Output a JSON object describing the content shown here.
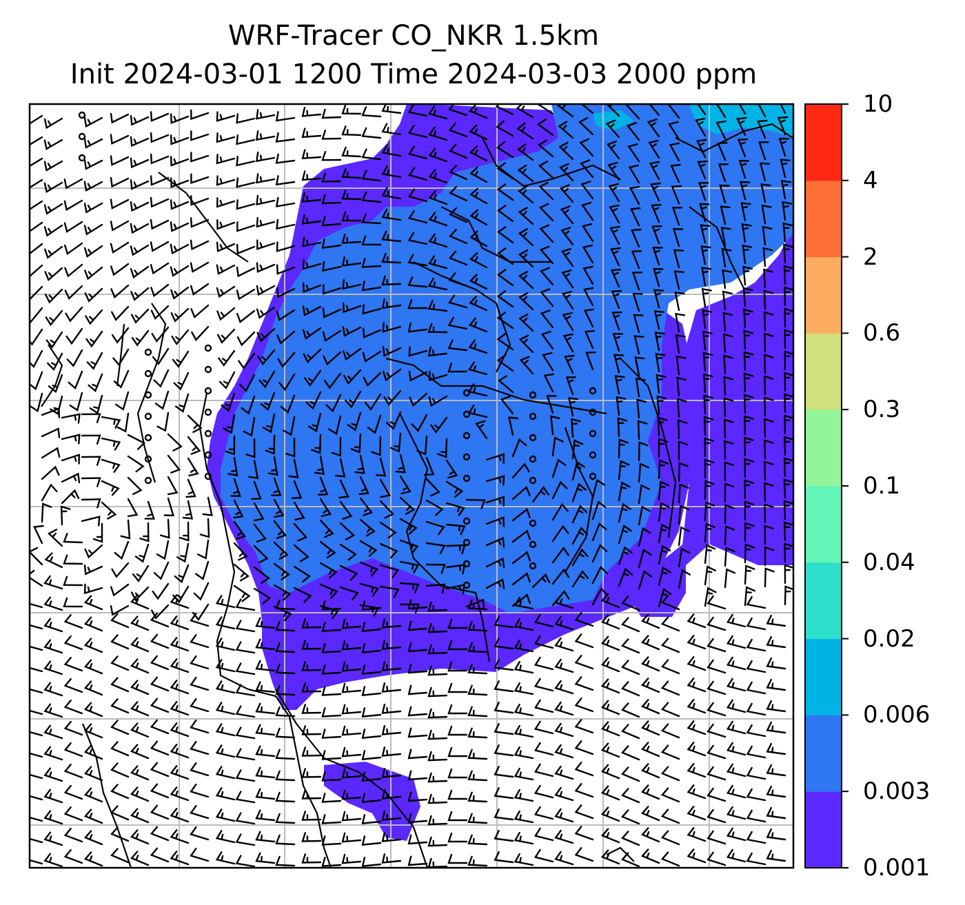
{
  "title": {
    "line1": "WRF-Tracer CO_NKR 1.5km",
    "line2": "Init 2024-03-01 1200 Time 2024-03-03 2000 ppm"
  },
  "colorbar": {
    "levels": [
      "0.001",
      "0.003",
      "0.006",
      "0.02",
      "0.04",
      "0.1",
      "0.3",
      "0.6",
      "2",
      "4",
      "10"
    ],
    "colors": [
      "#5b28ff",
      "#2f76f2",
      "#00b3e6",
      "#2ee0cc",
      "#62f5b8",
      "#92f599",
      "#d0e07f",
      "#fdad5f",
      "#ff6e35",
      "#ff2914"
    ]
  },
  "map": {
    "background": "#ffffff",
    "gridline_color": "#bbbbbb",
    "tracer_colors_shown": [
      "#5b28ff",
      "#2f76f2",
      "#00b3e6"
    ],
    "overlay": "wind barbs",
    "coastline_color": "#000000"
  }
}
